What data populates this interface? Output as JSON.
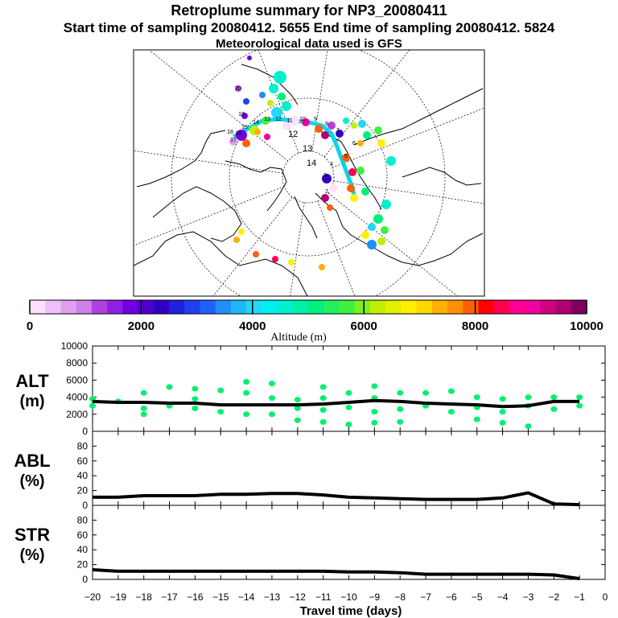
{
  "header": {
    "title": "Retroplume summary for NP3_20080411",
    "sampling": "Start time of sampling 20080412.  5655     End time of sampling 20080412.  5824",
    "met": "Meteorological data used is GFS"
  },
  "map": {
    "ring_labels": [
      "12",
      "13",
      "14"
    ],
    "day_labels": [
      "2",
      "3",
      "4",
      "5",
      "6",
      "7",
      "8",
      "9",
      "10",
      "11",
      "12",
      "13",
      "14",
      "15",
      "16",
      "17",
      "18",
      "19",
      "20"
    ],
    "track_color": "#00d8e8"
  },
  "colorbar": {
    "label": "Altitude (m)",
    "tick_labels": [
      "0",
      "2000",
      "4000",
      "6000",
      "8000",
      "10000"
    ],
    "range": [
      0,
      10000
    ],
    "colors": [
      "#ffe0ff",
      "#f0c0f8",
      "#e0a0f0",
      "#d080e8",
      "#b040e0",
      "#9020e0",
      "#7000e0",
      "#5000d0",
      "#3000c0",
      "#2020e0",
      "#2040f0",
      "#2060f8",
      "#2090f8",
      "#20b8f8",
      "#20d8f8",
      "#00f0f0",
      "#00f0d0",
      "#00f0a8",
      "#00f080",
      "#20f060",
      "#40f040",
      "#80f020",
      "#c0f000",
      "#e0f000",
      "#fff000",
      "#ffd800",
      "#ffb000",
      "#ff9000",
      "#ff6000",
      "#ff0000",
      "#ff0050",
      "#ff0090",
      "#f000a0",
      "#d00080",
      "#b00070",
      "#800060"
    ]
  },
  "chart_data": [
    {
      "type": "line",
      "panel": "ALT",
      "ylabel": "ALT (m)",
      "ylim": [
        0,
        10000
      ],
      "yticks": [
        "0",
        "2000",
        "4000",
        "6000",
        "8000",
        "10000"
      ],
      "x": [
        -20,
        -19,
        -18,
        -17,
        -16,
        -15,
        -14,
        -13,
        -12,
        -11,
        -10,
        -9,
        -8,
        -7,
        -6,
        -5,
        -4,
        -3,
        -2,
        -1
      ],
      "values": [
        3500,
        3400,
        3400,
        3300,
        3300,
        3100,
        3100,
        3100,
        3100,
        3200,
        3400,
        3600,
        3500,
        3300,
        3200,
        3100,
        2900,
        3000,
        3500,
        3500
      ],
      "scatter_color": "#00f070",
      "scatter": [
        [
          -20,
          3000
        ],
        [
          -20,
          3800
        ],
        [
          -19,
          3500
        ],
        [
          -18,
          4500
        ],
        [
          -18,
          2700
        ],
        [
          -18,
          2000
        ],
        [
          -17,
          5200
        ],
        [
          -17,
          3000
        ],
        [
          -16,
          5000
        ],
        [
          -16,
          2700
        ],
        [
          -16,
          3800
        ],
        [
          -15,
          4800
        ],
        [
          -15,
          2300
        ],
        [
          -14,
          5800
        ],
        [
          -14,
          4500
        ],
        [
          -14,
          2000
        ],
        [
          -13,
          5600
        ],
        [
          -13,
          3900
        ],
        [
          -13,
          2000
        ],
        [
          -12,
          3700
        ],
        [
          -12,
          2700
        ],
        [
          -12,
          1300
        ],
        [
          -11,
          5200
        ],
        [
          -11,
          3900
        ],
        [
          -11,
          2500
        ],
        [
          -11,
          1100
        ],
        [
          -10,
          4500
        ],
        [
          -10,
          2800
        ],
        [
          -10,
          800
        ],
        [
          -9,
          5300
        ],
        [
          -9,
          3900
        ],
        [
          -9,
          2300
        ],
        [
          -9,
          1000
        ],
        [
          -8,
          4500
        ],
        [
          -8,
          2600
        ],
        [
          -8,
          1100
        ],
        [
          -7,
          4500
        ],
        [
          -7,
          3000
        ],
        [
          -6,
          4700
        ],
        [
          -6,
          2300
        ],
        [
          -5,
          4000
        ],
        [
          -5,
          2800
        ],
        [
          -5,
          1400
        ],
        [
          -4,
          3800
        ],
        [
          -4,
          2300
        ],
        [
          -4,
          1000
        ],
        [
          -3,
          4000
        ],
        [
          -3,
          3000
        ],
        [
          -3,
          600
        ],
        [
          -2,
          4000
        ],
        [
          -2,
          2600
        ],
        [
          -1,
          4000
        ],
        [
          -1,
          3000
        ]
      ]
    },
    {
      "type": "line",
      "panel": "ABL",
      "ylabel": "ABL (%)",
      "ylim": [
        0,
        100
      ],
      "yticks": [
        "0",
        "20",
        "40",
        "60",
        "80"
      ],
      "x": [
        -20,
        -19,
        -18,
        -17,
        -16,
        -15,
        -14,
        -13,
        -12,
        -11,
        -10,
        -9,
        -8,
        -7,
        -6,
        -5,
        -4,
        -3,
        -2,
        -1
      ],
      "values": [
        11,
        11,
        13,
        13,
        13,
        15,
        15,
        16,
        16,
        14,
        11,
        10,
        9,
        8,
        8,
        8,
        10,
        17,
        2,
        1
      ]
    },
    {
      "type": "line",
      "panel": "STR",
      "ylabel": "STR (%)",
      "ylim": [
        0,
        100
      ],
      "yticks": [
        "0",
        "20",
        "40",
        "60",
        "80"
      ],
      "x": [
        -20,
        -19,
        -18,
        -17,
        -16,
        -15,
        -14,
        -13,
        -12,
        -11,
        -10,
        -9,
        -8,
        -7,
        -6,
        -5,
        -4,
        -3,
        -2,
        -1
      ],
      "values": [
        13,
        11,
        11,
        11,
        11,
        11,
        11,
        11,
        11,
        11,
        10,
        10,
        9,
        7,
        7,
        7,
        7,
        7,
        6,
        1
      ]
    }
  ],
  "xaxis": {
    "label": "Travel time (days)",
    "ticks": [
      "−20",
      "−19",
      "−18",
      "−17",
      "−16",
      "−15",
      "−14",
      "−13",
      "−12",
      "−11",
      "−10",
      "−9",
      "−8",
      "−7",
      "−6",
      "−5",
      "−4",
      "−3",
      "−2",
      "−1",
      "0"
    ]
  }
}
